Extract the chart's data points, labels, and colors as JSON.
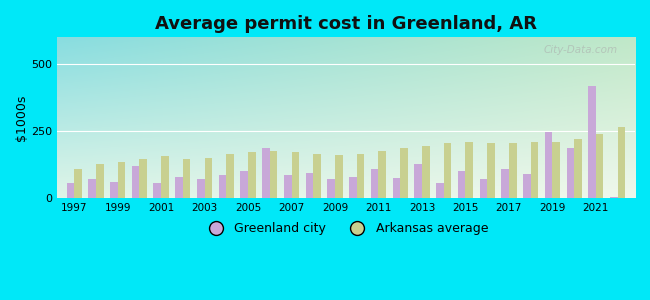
{
  "title": "Average permit cost in Greenland, AR",
  "ylabel": "$1000s",
  "bg_outer": "#00e8f8",
  "years": [
    1997,
    1998,
    1999,
    2000,
    2001,
    2002,
    2003,
    2004,
    2005,
    2006,
    2007,
    2008,
    2009,
    2010,
    2011,
    2012,
    2013,
    2014,
    2015,
    2016,
    2017,
    2018,
    2019,
    2020,
    2021,
    2022
  ],
  "greenland": [
    55,
    70,
    60,
    120,
    55,
    80,
    70,
    85,
    100,
    185,
    85,
    95,
    70,
    80,
    110,
    75,
    125,
    55,
    100,
    70,
    110,
    90,
    245,
    185,
    420,
    5
  ],
  "arkansas": [
    110,
    125,
    135,
    145,
    155,
    145,
    150,
    165,
    170,
    175,
    170,
    165,
    160,
    165,
    175,
    185,
    195,
    205,
    210,
    205,
    205,
    210,
    210,
    220,
    240,
    265
  ],
  "greenland_color": "#c8a8d8",
  "arkansas_color": "#c8d090",
  "ylim": [
    0,
    600
  ],
  "yticks": [
    0,
    250,
    500
  ],
  "legend_greenland": "Greenland city",
  "legend_arkansas": "Arkansas average",
  "watermark": "City-Data.com",
  "bg_top_left": "#88dde0",
  "bg_top_right": "#b8e8c0",
  "bg_bottom": "#e8f5e0"
}
